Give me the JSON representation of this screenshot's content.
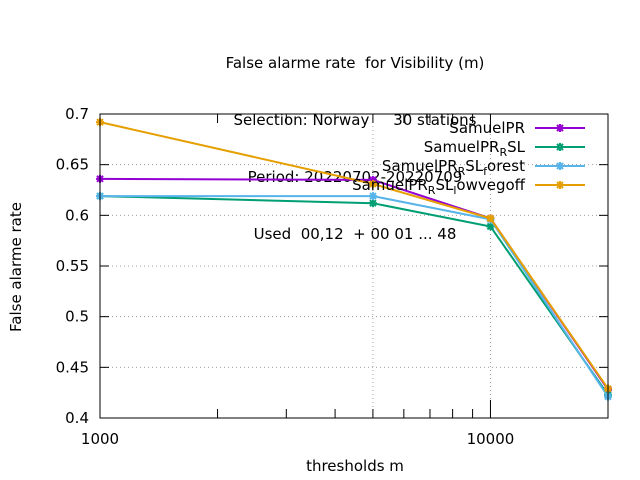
{
  "chart_data": {
    "type": "line",
    "title_lines": [
      "False alarme rate  for Visibility (m)",
      "Selection: Norway     30 stations",
      "Period: 20220702-20220709",
      "Used  00,12  + 00 01 ... 48"
    ],
    "xlabel": "thresholds m",
    "ylabel": "False alarme rate",
    "xscale": "log",
    "xlim": [
      1000,
      20000
    ],
    "ylim": [
      0.4,
      0.7
    ],
    "x_ticks": [
      {
        "value": 1000,
        "label": "1000"
      },
      {
        "value": 10000,
        "label": "10000"
      }
    ],
    "y_ticks": [
      {
        "value": 0.4,
        "label": "0.4"
      },
      {
        "value": 0.45,
        "label": "0.45"
      },
      {
        "value": 0.5,
        "label": "0.5"
      },
      {
        "value": 0.55,
        "label": "0.55"
      },
      {
        "value": 0.6,
        "label": "0.6"
      },
      {
        "value": 0.65,
        "label": "0.65"
      },
      {
        "value": 0.7,
        "label": "0.7"
      }
    ],
    "grid": true,
    "legend_position": "top-right",
    "x": [
      1000,
      5000,
      10000,
      20000
    ],
    "series": [
      {
        "name": "SamuelPR",
        "legend_base": "SamuelPR",
        "legend_parts": [],
        "color": "#9400d3",
        "values": [
          0.636,
          0.635,
          0.597,
          0.428
        ]
      },
      {
        "name": "SamuelPR_R SL",
        "legend_base": "SamuelPR",
        "legend_parts": [
          [
            "R",
            "SL"
          ]
        ],
        "color": "#009e73",
        "values": [
          0.619,
          0.612,
          0.589,
          0.423
        ]
      },
      {
        "name": "SamuelPR_R SL_f orest",
        "legend_base": "SamuelPR",
        "legend_parts": [
          [
            "R",
            "SL"
          ],
          [
            "f",
            "orest"
          ]
        ],
        "color": "#56b4e9",
        "values": [
          0.619,
          0.619,
          0.596,
          0.421
        ]
      },
      {
        "name": "SamuelPR_R SL_l owvegoff",
        "legend_base": "SamuelPR",
        "legend_parts": [
          [
            "R",
            "SL"
          ],
          [
            "l",
            "owvegoff"
          ]
        ],
        "color": "#e69f00",
        "values": [
          0.692,
          0.631,
          0.597,
          0.429
        ]
      }
    ]
  }
}
